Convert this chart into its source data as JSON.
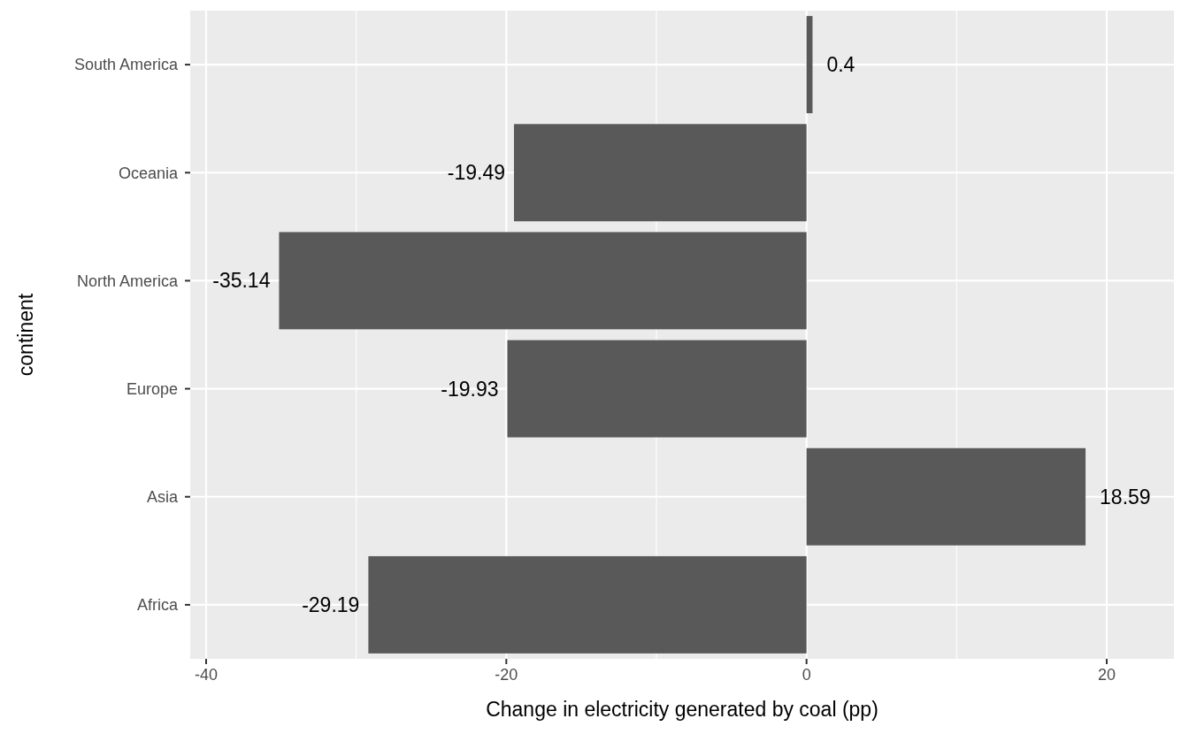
{
  "chart_data": {
    "type": "bar",
    "orientation": "horizontal",
    "xlabel": "Change in electricity generated by coal (pp)",
    "ylabel": "continent",
    "categories": [
      "South America",
      "Oceania",
      "North America",
      "Europe",
      "Asia",
      "Africa"
    ],
    "values": [
      0.4,
      -19.49,
      -35.14,
      -19.93,
      18.59,
      -29.19
    ],
    "color": "#595959",
    "data_labels": true,
    "grid": true,
    "xlim": [
      -41.06,
      24.48
    ],
    "xticks": [
      -40,
      -20,
      0,
      20
    ]
  }
}
